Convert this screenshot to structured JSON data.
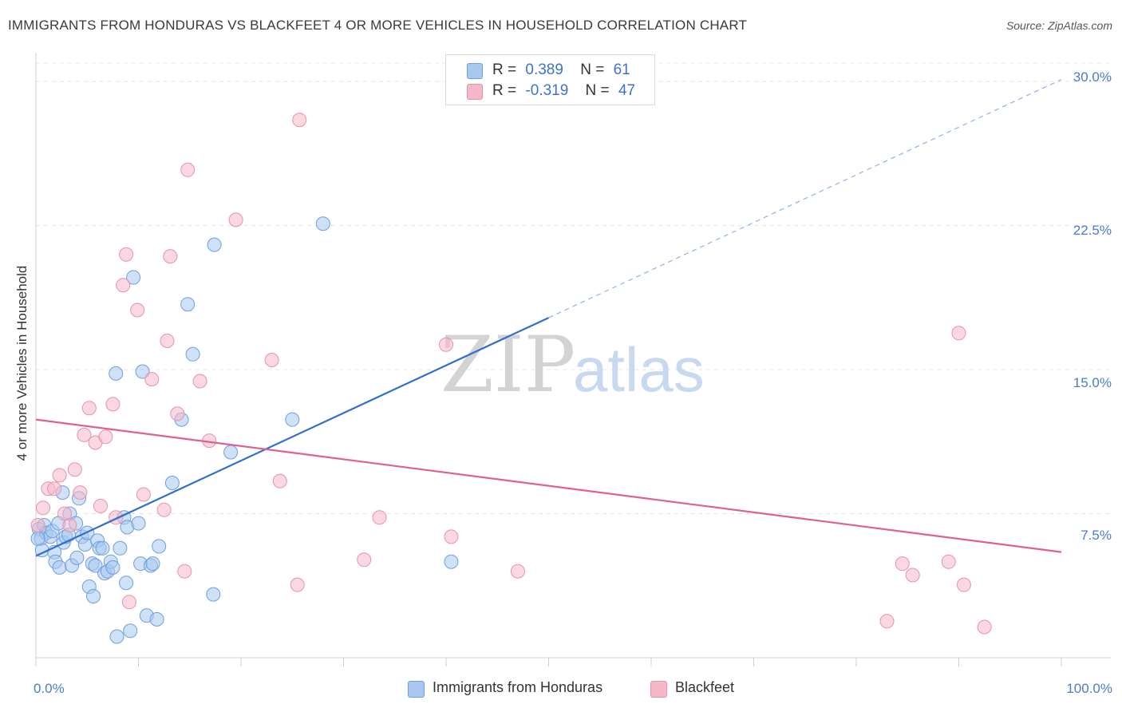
{
  "header": {
    "title": "IMMIGRANTS FROM HONDURAS VS BLACKFEET 4 OR MORE VEHICLES IN HOUSEHOLD CORRELATION CHART",
    "source": "Source: ZipAtlas.com"
  },
  "watermark": {
    "zip": "ZIP",
    "atlas": "atlas"
  },
  "legend": {
    "rows": [
      {
        "r_label": "R =",
        "r_value": "0.389",
        "n_label": "N =",
        "n_value": "61",
        "color": "#a8c8ef"
      },
      {
        "r_label": "R =",
        "r_value": "-0.319",
        "n_label": "N =",
        "n_value": "47",
        "color": "#f6b8c8"
      }
    ],
    "bottom": [
      {
        "label": "Immigrants from Honduras",
        "color": "#a8c8ef"
      },
      {
        "label": "Blackfeet",
        "color": "#f6b8c8"
      }
    ]
  },
  "chart_data": {
    "type": "scatter",
    "title": "IMMIGRANTS FROM HONDURAS VS BLACKFEET 4 OR MORE VEHICLES IN HOUSEHOLD CORRELATION CHART",
    "xlabel": "",
    "ylabel": "4 or more Vehicles in Household",
    "xlim": [
      0,
      100
    ],
    "ylim": [
      0,
      31.5
    ],
    "x_tick_labels": [
      "0.0%",
      "100.0%"
    ],
    "y_ticks": [
      7.5,
      15.0,
      22.5,
      30.0
    ],
    "y_tick_labels": [
      "7.5%",
      "15.0%",
      "22.5%",
      "30.0%"
    ],
    "series": [
      {
        "name": "Immigrants from Honduras",
        "color": "#a8c8ef",
        "stroke": "#6d9fe0",
        "trend_color": "#2e6fcb",
        "trend": {
          "x0": 0,
          "y0": 5.3,
          "x1": 50,
          "y1": 17.7,
          "dashed_to_x": 100,
          "dashed_to_y": 30.1
        },
        "points": [
          [
            0.3,
            6.7
          ],
          [
            0.5,
            6.2
          ],
          [
            0.6,
            5.6
          ],
          [
            0.8,
            6.9
          ],
          [
            1.0,
            6.5
          ],
          [
            1.4,
            6.3
          ],
          [
            1.6,
            6.6
          ],
          [
            1.8,
            5.5
          ],
          [
            1.9,
            5.0
          ],
          [
            2.2,
            7.0
          ],
          [
            2.3,
            4.7
          ],
          [
            2.6,
            8.6
          ],
          [
            2.7,
            6.0
          ],
          [
            2.9,
            6.3
          ],
          [
            3.2,
            6.4
          ],
          [
            3.3,
            7.5
          ],
          [
            3.5,
            4.8
          ],
          [
            3.9,
            7.0
          ],
          [
            4.0,
            5.2
          ],
          [
            4.2,
            8.3
          ],
          [
            4.5,
            6.3
          ],
          [
            4.8,
            5.9
          ],
          [
            5.0,
            6.5
          ],
          [
            5.2,
            3.7
          ],
          [
            5.5,
            4.9
          ],
          [
            5.6,
            3.2
          ],
          [
            5.8,
            4.8
          ],
          [
            6.0,
            6.1
          ],
          [
            6.2,
            5.7
          ],
          [
            6.5,
            5.7
          ],
          [
            6.7,
            4.4
          ],
          [
            7.0,
            4.5
          ],
          [
            7.3,
            5.0
          ],
          [
            7.5,
            4.7
          ],
          [
            7.8,
            14.8
          ],
          [
            7.9,
            1.1
          ],
          [
            8.2,
            5.7
          ],
          [
            8.6,
            7.3
          ],
          [
            8.8,
            3.9
          ],
          [
            8.9,
            6.8
          ],
          [
            9.2,
            1.4
          ],
          [
            9.5,
            19.8
          ],
          [
            10.0,
            7.0
          ],
          [
            10.2,
            4.9
          ],
          [
            10.4,
            14.9
          ],
          [
            10.8,
            2.2
          ],
          [
            11.2,
            4.8
          ],
          [
            11.4,
            4.9
          ],
          [
            11.8,
            2.0
          ],
          [
            12.0,
            5.8
          ],
          [
            13.3,
            9.1
          ],
          [
            14.2,
            12.4
          ],
          [
            14.8,
            18.4
          ],
          [
            15.3,
            15.8
          ],
          [
            17.3,
            3.3
          ],
          [
            17.4,
            21.5
          ],
          [
            19.0,
            10.7
          ],
          [
            25.0,
            12.4
          ],
          [
            28.0,
            22.6
          ],
          [
            40.5,
            5.0
          ],
          [
            0.2,
            6.2
          ]
        ]
      },
      {
        "name": "Blackfeet",
        "color": "#f6b8c8",
        "stroke": "#e892aa",
        "trend_color": "#e06090",
        "trend": {
          "x0": 0,
          "y0": 12.4,
          "x1": 100,
          "y1": 5.5
        },
        "points": [
          [
            0.2,
            6.9
          ],
          [
            0.7,
            7.8
          ],
          [
            1.2,
            8.8
          ],
          [
            1.8,
            8.8
          ],
          [
            2.3,
            9.5
          ],
          [
            2.8,
            7.5
          ],
          [
            3.3,
            6.9
          ],
          [
            3.8,
            9.8
          ],
          [
            4.3,
            8.6
          ],
          [
            4.7,
            11.6
          ],
          [
            5.2,
            13.0
          ],
          [
            5.8,
            11.2
          ],
          [
            6.3,
            7.9
          ],
          [
            6.8,
            11.5
          ],
          [
            7.5,
            13.2
          ],
          [
            7.8,
            7.3
          ],
          [
            8.5,
            19.4
          ],
          [
            8.8,
            21.0
          ],
          [
            9.1,
            2.9
          ],
          [
            9.9,
            18.1
          ],
          [
            10.5,
            8.5
          ],
          [
            11.3,
            14.5
          ],
          [
            12.5,
            7.7
          ],
          [
            12.8,
            16.5
          ],
          [
            13.1,
            20.9
          ],
          [
            13.8,
            12.7
          ],
          [
            14.5,
            4.5
          ],
          [
            14.8,
            25.4
          ],
          [
            16.0,
            14.4
          ],
          [
            16.9,
            11.3
          ],
          [
            19.5,
            22.8
          ],
          [
            23.0,
            15.5
          ],
          [
            23.8,
            9.2
          ],
          [
            25.5,
            3.8
          ],
          [
            25.7,
            28.0
          ],
          [
            32.0,
            5.1
          ],
          [
            33.5,
            7.3
          ],
          [
            40.0,
            16.3
          ],
          [
            40.5,
            6.3
          ],
          [
            47.0,
            4.5
          ],
          [
            83.0,
            1.9
          ],
          [
            84.5,
            4.9
          ],
          [
            85.5,
            4.3
          ],
          [
            90.0,
            16.9
          ],
          [
            89.0,
            5.0
          ],
          [
            90.5,
            3.8
          ],
          [
            92.5,
            1.6
          ]
        ]
      }
    ]
  }
}
